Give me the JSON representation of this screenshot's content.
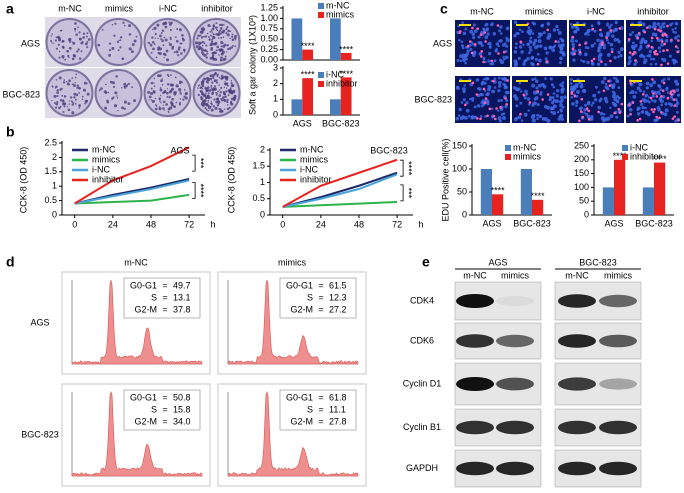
{
  "panels": [
    "a",
    "b",
    "c",
    "d",
    "e"
  ],
  "colony": {
    "columns": [
      "m-NC",
      "mimics",
      "i-NC",
      "inhibitor"
    ],
    "rows": [
      "AGS",
      "BGC-823"
    ]
  },
  "edu_images": {
    "columns": [
      "m-NC",
      "mimics",
      "i-NC",
      "inhibitor"
    ],
    "rows": [
      "AGS",
      "BGC-823"
    ]
  },
  "chart_data": [
    {
      "type": "bar",
      "ylabel": "Soft a gar colony (1X10³)",
      "categories": [
        null,
        null
      ],
      "series": [
        {
          "name": "m-NC",
          "color": "#4a7ebb",
          "values": [
            1,
            1
          ]
        },
        {
          "name": "mimics",
          "color": "#e8231f",
          "values": [
            0.25,
            0.17
          ],
          "significance": [
            "****",
            "****"
          ]
        }
      ],
      "ylim": [
        0,
        1.25
      ],
      "yticks": [
        {
          "value": 0,
          "label": "0.00"
        },
        {
          "value": 0.25,
          "label": "0.25"
        },
        {
          "value": 0.5,
          "label": "0.50"
        },
        {
          "value": 0.75,
          "label": "0.75"
        },
        {
          "value": 1,
          "label": "1.00"
        },
        {
          "value": 1.25,
          "label": "1.25"
        }
      ]
    },
    {
      "type": "bar",
      "categories": [
        "AGS",
        "BGC-823"
      ],
      "series": [
        {
          "name": "i-NC",
          "color": "#4a7ebb",
          "values": [
            1,
            1
          ]
        },
        {
          "name": "inhibitor",
          "color": "#e8231f",
          "values": [
            2.35,
            2.4
          ],
          "significance": [
            "****",
            "****"
          ]
        }
      ],
      "ylim": [
        0,
        3
      ],
      "yticks": [
        0,
        1,
        2,
        3
      ]
    },
    {
      "type": "line",
      "title": "AGS",
      "ylabel": "CCK-8 (OD 450)",
      "xlabel": "h",
      "x": [
        0,
        24,
        48,
        72
      ],
      "xlim": [
        -8,
        82
      ],
      "xticks": [
        0,
        24,
        48,
        72
      ],
      "ylim": [
        0,
        2.5
      ],
      "yticks": [
        0,
        0.5,
        1,
        1.5,
        2,
        2.5
      ],
      "series": [
        {
          "name": "m-NC",
          "color": "#1f2a6b",
          "values": [
            0.4,
            0.7,
            0.95,
            1.25
          ]
        },
        {
          "name": "mimics",
          "color": "#2db34a",
          "values": [
            0.4,
            0.45,
            0.5,
            0.7
          ]
        },
        {
          "name": "i-NC",
          "color": "#49a5d8",
          "values": [
            0.4,
            0.65,
            0.9,
            1.2
          ]
        },
        {
          "name": "inhibitor",
          "color": "#e8231f",
          "values": [
            0.4,
            1.2,
            1.7,
            2.35
          ]
        }
      ],
      "annotations": [
        "***",
        "****"
      ]
    },
    {
      "type": "line",
      "title": "BGC-823",
      "ylabel": "CCK-8 (OD 450)",
      "xlabel": "h",
      "x": [
        0,
        24,
        48,
        72
      ],
      "xlim": [
        -8,
        82
      ],
      "xticks": [
        0,
        24,
        48,
        72
      ],
      "ylim": [
        0,
        2
      ],
      "yticks": [
        0,
        0.5,
        1,
        1.5,
        2
      ],
      "series": [
        {
          "name": "m-NC",
          "color": "#1f2a6b",
          "values": [
            0.25,
            0.55,
            0.9,
            1.3
          ]
        },
        {
          "name": "mimics",
          "color": "#2db34a",
          "values": [
            0.25,
            0.3,
            0.35,
            0.4
          ]
        },
        {
          "name": "i-NC",
          "color": "#49a5d8",
          "values": [
            0.25,
            0.5,
            0.8,
            1.25
          ]
        },
        {
          "name": "inhibitor",
          "color": "#e8231f",
          "values": [
            0.25,
            0.9,
            1.3,
            1.7
          ]
        }
      ],
      "annotations": [
        "****",
        "***"
      ]
    },
    {
      "type": "bar",
      "ylabel": "EDU Positive cell(%)",
      "categories": [
        "AGS",
        "BGC-823"
      ],
      "series": [
        {
          "name": "m-NC",
          "color": "#4a7ebb",
          "values": [
            100,
            100
          ]
        },
        {
          "name": "mimics",
          "color": "#e8231f",
          "values": [
            45,
            33
          ],
          "significance": [
            "****",
            "****"
          ]
        }
      ],
      "ylim": [
        0,
        150
      ],
      "yticks": [
        0,
        50,
        100,
        150
      ]
    },
    {
      "type": "bar",
      "categories": [
        "AGS",
        "BGC-823"
      ],
      "series": [
        {
          "name": "i-NC",
          "color": "#4a7ebb",
          "values": [
            100,
            100
          ]
        },
        {
          "name": "inhibitor",
          "color": "#e8231f",
          "values": [
            200,
            190
          ],
          "significance": [
            "****",
            "****"
          ]
        }
      ],
      "ylim": [
        0,
        250
      ],
      "yticks": [
        0,
        50,
        100,
        150,
        200,
        250
      ]
    }
  ],
  "cell_cycle": {
    "columns": [
      "m-NC",
      "mimics"
    ],
    "rows": [
      "AGS",
      "BGC-823"
    ],
    "panels": [
      [
        [
          {
            "phase": "G0-G1",
            "sign": "=",
            "value": "49.7"
          },
          {
            "phase": "S",
            "sign": "=",
            "value": "13.1"
          },
          {
            "phase": "G2-M",
            "sign": "=",
            "value": "37.8"
          }
        ],
        [
          {
            "phase": "G0-G1",
            "sign": "=",
            "value": "61.5"
          },
          {
            "phase": "S",
            "sign": "=",
            "value": "12.3"
          },
          {
            "phase": "G2-M",
            "sign": "=",
            "value": "27.2"
          }
        ]
      ],
      [
        [
          {
            "phase": "G0-G1",
            "sign": "=",
            "value": "50.8"
          },
          {
            "phase": "S",
            "sign": "=",
            "value": "15.8"
          },
          {
            "phase": "G2-M",
            "sign": "=",
            "value": "34.0"
          }
        ],
        [
          {
            "phase": "G0-G1",
            "sign": "=",
            "value": "61.8"
          },
          {
            "phase": "S",
            "sign": "=",
            "value": "11.1"
          },
          {
            "phase": "G2-M",
            "sign": "=",
            "value": "27.8"
          }
        ]
      ]
    ]
  },
  "western": {
    "groups": [
      "AGS",
      "BGC-823"
    ],
    "lanes": [
      "m-NC",
      "mimics",
      "m-NC",
      "mimics"
    ],
    "proteins": [
      "CDK4",
      "CDK6",
      "Cyclin D1",
      "Cyclin B1",
      "GAPDH"
    ]
  }
}
